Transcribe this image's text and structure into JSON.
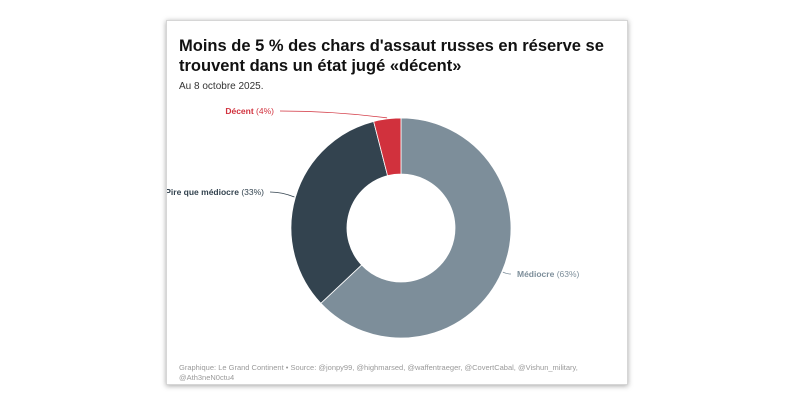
{
  "title": "Moins de 5 % des chars d'assaut russes en réserve se trouvent dans un état jugé «décent»",
  "subtitle": "Au 8 octobre 2025.",
  "footer": "Graphique: Le Grand Continent • Source: @jonpy99, @highmarsed, @waffentraeger, @CovertCabal, @Vishun_military, @Ath3neN0ctu4",
  "chart_data": {
    "type": "pie",
    "variant": "donut",
    "slices": [
      {
        "name": "Médiocre",
        "value": 63,
        "pct_label": "(63%)",
        "color": "#7d8e9a"
      },
      {
        "name": "Pire que médiocre",
        "value": 33,
        "pct_label": "(33%)",
        "color": "#33434f"
      },
      {
        "name": "Décent",
        "value": 4,
        "pct_label": "(4%)",
        "color": "#d1313d"
      }
    ]
  }
}
